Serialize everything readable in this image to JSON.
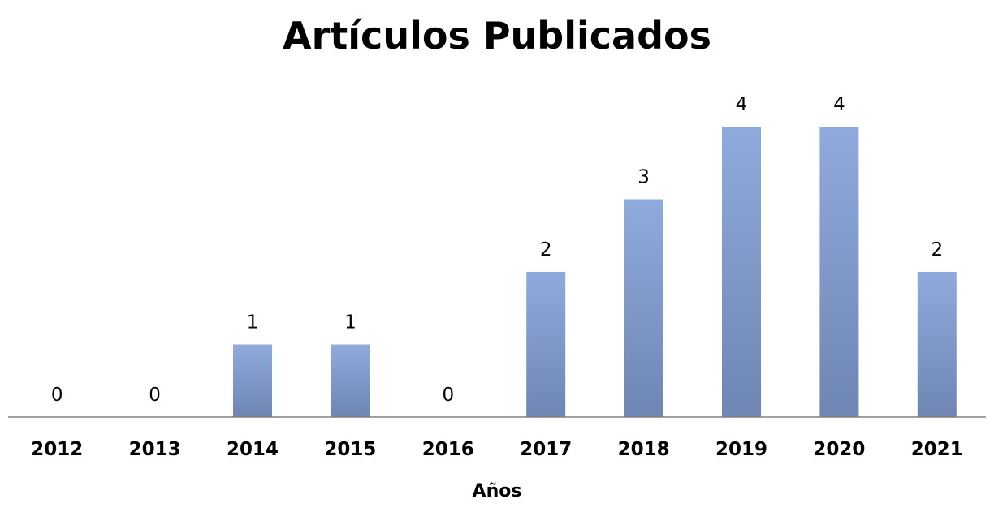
{
  "chart_data": {
    "type": "bar",
    "title": "Artículos Publicados",
    "xlabel": "Años",
    "ylabel": "",
    "categories": [
      "2012",
      "2013",
      "2014",
      "2015",
      "2016",
      "2017",
      "2018",
      "2019",
      "2020",
      "2021"
    ],
    "values": [
      0,
      0,
      1,
      1,
      0,
      2,
      3,
      4,
      4,
      2
    ],
    "ylim": [
      0,
      4
    ],
    "grid": false,
    "legend": "none",
    "data_labels": true,
    "colors": {
      "bar_top": "#8faadc",
      "bar_bottom": "#6f86b4",
      "axis": "#808080"
    }
  }
}
